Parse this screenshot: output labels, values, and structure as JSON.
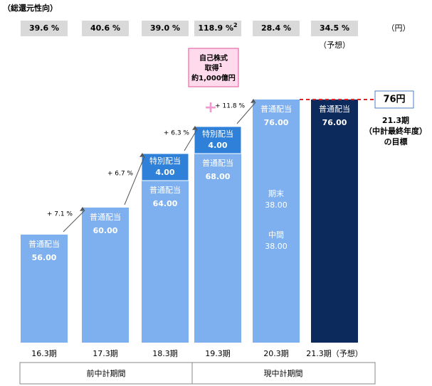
{
  "chart_data": {
    "type": "bar",
    "payout_title": "（総還元性向）",
    "unit": "（円）",
    "categories": [
      "16.3期",
      "17.3期",
      "18.3期",
      "19.3期",
      "20.3期",
      "21.3期（予想）"
    ],
    "payout": [
      {
        "value": 39.6,
        "label": "39.6 %"
      },
      {
        "value": 40.6,
        "label": "40.6 %"
      },
      {
        "value": 39.0,
        "label": "39.0 %"
      },
      {
        "value": 118.9,
        "label": "118.9 %",
        "note": "2"
      },
      {
        "value": 28.4,
        "label": "28.4 %"
      },
      {
        "value": 34.5,
        "label": "34.5 %",
        "note": "（予想）"
      }
    ],
    "series": [
      {
        "name": "普通配当",
        "colors": [
          "#7eb0ef",
          "#7eb0ef",
          "#7eb0ef",
          "#7eb0ef",
          "#7eb0ef",
          "#0d2a5c"
        ],
        "values": [
          56,
          60,
          64,
          68,
          76,
          76
        ],
        "value_labels": [
          "56.00",
          "60.00",
          "64.00",
          "68.00",
          "76.00",
          "76.00"
        ]
      },
      {
        "name": "特別配当",
        "color": "#2f80d8",
        "values": [
          null,
          null,
          4,
          4,
          null,
          null
        ],
        "value_labels": [
          null,
          null,
          "4.00",
          "4.00",
          null,
          null
        ]
      }
    ],
    "breakdown": [
      {
        "name": "期末",
        "value": 38,
        "label": "38.00"
      },
      {
        "name": "中間",
        "value": 38,
        "label": "38.00"
      }
    ],
    "growth": [
      {
        "value": 7.1,
        "label": "+ 7.1 %"
      },
      {
        "value": 6.7,
        "label": "+ 6.7 %"
      },
      {
        "value": 6.3,
        "label": "+ 6.3 %"
      },
      {
        "value": 11.8,
        "label": "+ 11.8 %"
      }
    ],
    "buyback": {
      "lines": [
        "自己株式",
        "取得",
        "約1,000億円"
      ],
      "note": "1"
    },
    "target": {
      "value": 76,
      "label": "76円",
      "lines": [
        "21.3期",
        "（中計最終年度）",
        "の目標"
      ]
    },
    "periods": [
      "前中計期間",
      "現中計期間"
    ],
    "ylim": [
      40,
      80
    ]
  }
}
